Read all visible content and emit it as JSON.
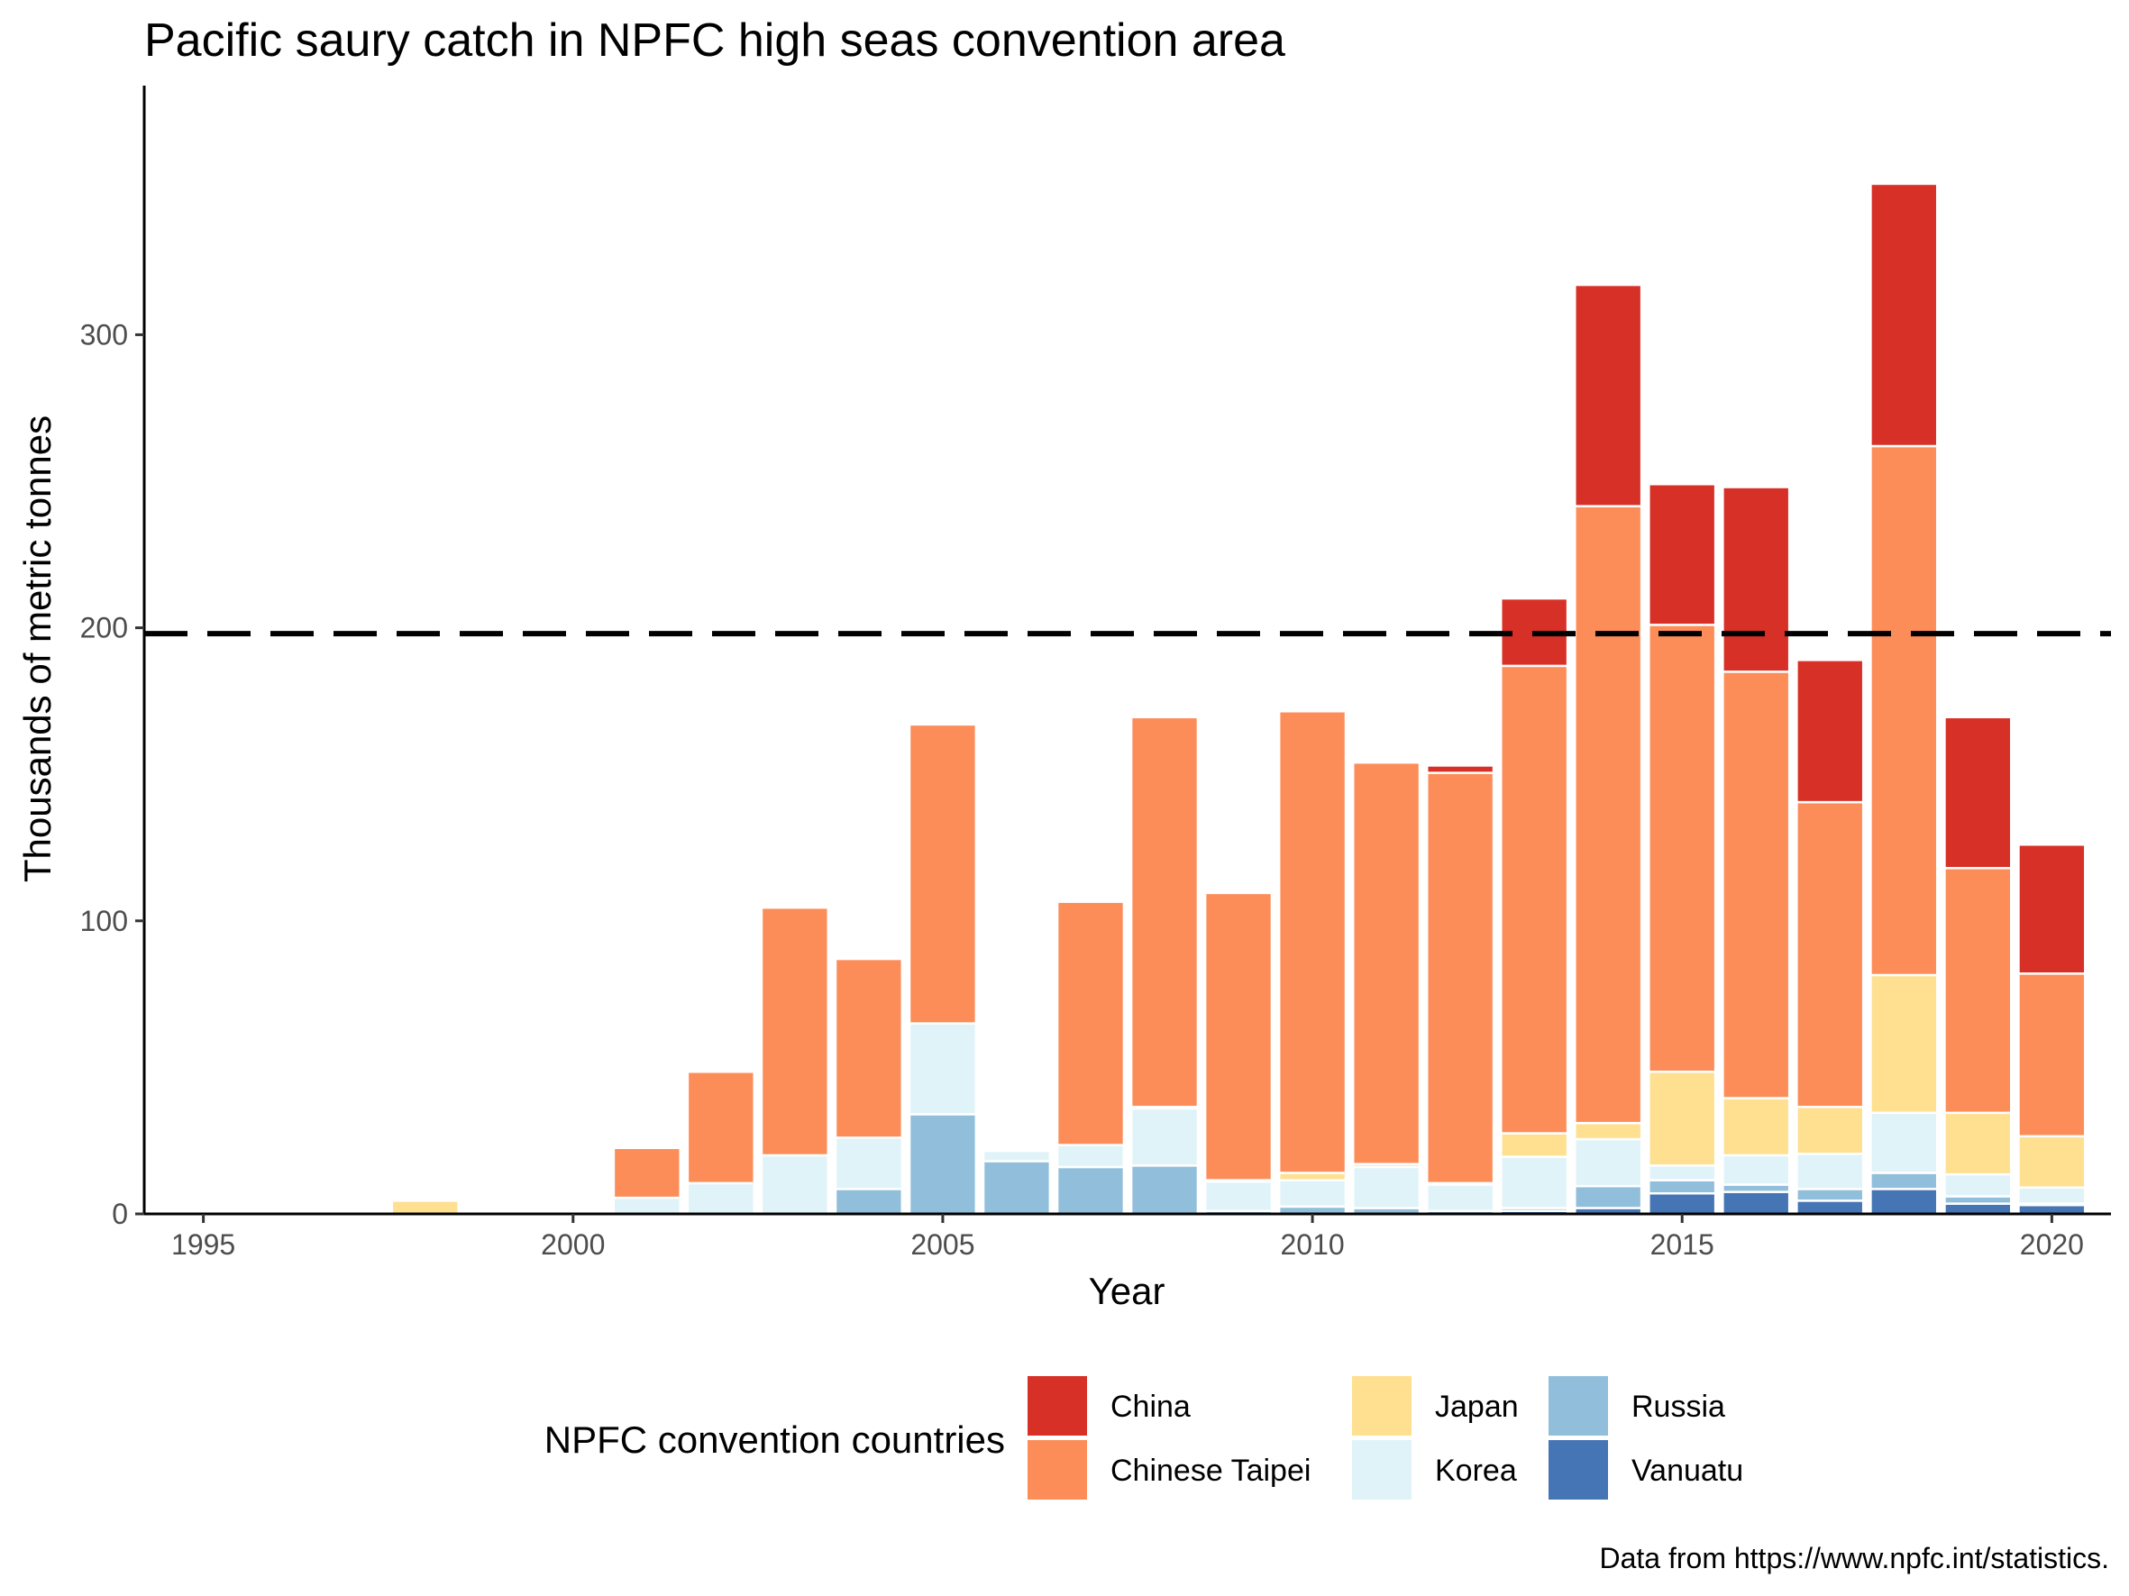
{
  "chart_data": {
    "type": "bar",
    "stacked": true,
    "title": "Pacific saury catch in NPFC high seas convention area",
    "xlabel": "Year",
    "ylabel": "Thousands of metric tonnes",
    "caption": "Data from https://www.npfc.int/statistics.",
    "x_ticks": [
      "1995",
      "2000",
      "2005",
      "2010",
      "2015",
      "2020"
    ],
    "y_ticks": [
      "0",
      "100",
      "200",
      "300"
    ],
    "xlim": [
      1994.2,
      2020.8
    ],
    "ylim": [
      0,
      385
    ],
    "reference_line": {
      "y": 198,
      "style": "dashed"
    },
    "legend": {
      "title": "NPFC convention countries",
      "position": "bottom"
    },
    "grid": false,
    "x": [
      1998,
      2001,
      2002,
      2003,
      2004,
      2005,
      2006,
      2007,
      2008,
      2009,
      2010,
      2011,
      2012,
      2013,
      2014,
      2015,
      2016,
      2017,
      2018,
      2019,
      2020
    ],
    "series": [
      {
        "name": "Vanuatu",
        "color": "#4575b4",
        "values": [
          0,
          0,
          0,
          0,
          0,
          0,
          0,
          0,
          0,
          0,
          0,
          0,
          0,
          1,
          2,
          7,
          7.5,
          4.5,
          8.5,
          3.5,
          3
        ]
      },
      {
        "name": "Russia",
        "color": "#91bfdb",
        "values": [
          0,
          0,
          0,
          0,
          8.5,
          34,
          18,
          16,
          16.5,
          1,
          2.5,
          2,
          1,
          1,
          7.5,
          4.5,
          2.5,
          4,
          5.5,
          2.5,
          0.5
        ]
      },
      {
        "name": "Korea",
        "color": "#e0f3f8",
        "values": [
          0,
          5.5,
          10.5,
          20,
          17.5,
          31,
          3.5,
          7.5,
          19.5,
          10,
          9,
          14,
          9,
          17.5,
          16,
          5,
          10,
          12,
          20.5,
          7.5,
          5.5
        ]
      },
      {
        "name": "Japan",
        "color": "#fee090",
        "values": [
          4.5,
          0,
          0,
          0,
          0,
          0,
          0,
          0,
          0.5,
          0.5,
          2.5,
          1,
          0.5,
          8,
          5.5,
          32,
          19.5,
          16,
          47,
          21,
          17.5
        ]
      },
      {
        "name": "Chinese Taipei",
        "color": "#fc8d59",
        "values": [
          0,
          17,
          38,
          84.5,
          61,
          102,
          0,
          83,
          133,
          98,
          157.5,
          137,
          140,
          159.5,
          210.5,
          152.5,
          145.5,
          104,
          180.5,
          83.5,
          55.5
        ]
      },
      {
        "name": "China",
        "color": "#d73027",
        "values": [
          0,
          0,
          0,
          0,
          0,
          0,
          0,
          0,
          0,
          0,
          0,
          0,
          2.5,
          23,
          75.5,
          48,
          63,
          48.5,
          89.5,
          51.5,
          44
        ]
      }
    ]
  }
}
